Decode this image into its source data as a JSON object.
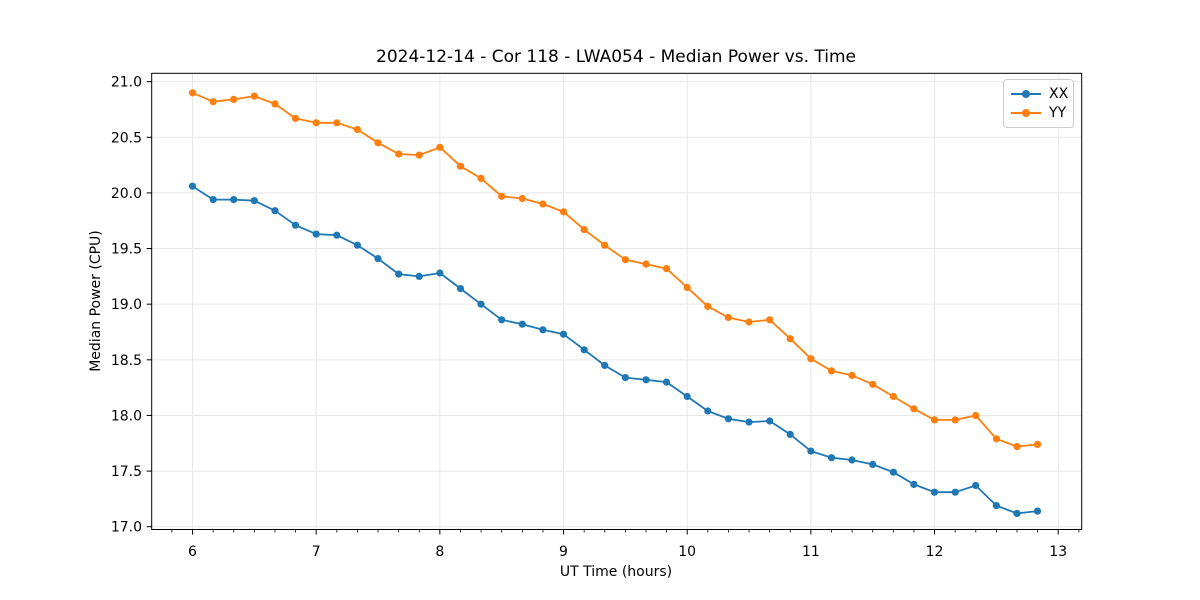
{
  "chart_data": {
    "type": "line",
    "title": "2024-12-14 - Cor 118 - LWA054 - Median Power vs. Time",
    "xlabel": "UT Time (hours)",
    "ylabel": "Median Power (CPU)",
    "grid": true,
    "legend_position": "upper right",
    "xlim": [
      5.67,
      13.19
    ],
    "ylim": [
      16.975,
      21.075
    ],
    "x_major_ticks": [
      6,
      7,
      8,
      9,
      10,
      11,
      12,
      13
    ],
    "x_minor_interval_hours": 0.16667,
    "y_major_ticks": [
      17.0,
      17.5,
      18.0,
      18.5,
      19.0,
      19.5,
      20.0,
      20.5,
      21.0
    ],
    "x": [
      6.0,
      6.167,
      6.333,
      6.5,
      6.667,
      6.833,
      7.0,
      7.167,
      7.333,
      7.5,
      7.667,
      7.833,
      8.0,
      8.167,
      8.333,
      8.5,
      8.667,
      8.833,
      9.0,
      9.167,
      9.333,
      9.5,
      9.667,
      9.833,
      10.0,
      10.167,
      10.333,
      10.5,
      10.667,
      10.833,
      11.0,
      11.167,
      11.333,
      11.5,
      11.667,
      11.833,
      12.0,
      12.167,
      12.333,
      12.5,
      12.667,
      12.833
    ],
    "series": [
      {
        "name": "XX",
        "color": "#1f77b4",
        "values": [
          20.06,
          19.94,
          19.94,
          19.93,
          19.84,
          19.71,
          19.63,
          19.62,
          19.53,
          19.41,
          19.27,
          19.25,
          19.28,
          19.14,
          19.0,
          18.86,
          18.82,
          18.77,
          18.73,
          18.59,
          18.45,
          18.34,
          18.32,
          18.3,
          18.17,
          18.04,
          17.97,
          17.94,
          17.95,
          17.83,
          17.68,
          17.62,
          17.6,
          17.56,
          17.49,
          17.38,
          17.31,
          17.31,
          17.37,
          17.19,
          17.12,
          17.14
        ]
      },
      {
        "name": "YY",
        "color": "#ff7f0e",
        "values": [
          20.9,
          20.82,
          20.84,
          20.87,
          20.8,
          20.67,
          20.63,
          20.63,
          20.57,
          20.45,
          20.35,
          20.34,
          20.41,
          20.24,
          20.13,
          19.97,
          19.95,
          19.9,
          19.83,
          19.67,
          19.53,
          19.4,
          19.36,
          19.32,
          19.15,
          18.98,
          18.88,
          18.84,
          18.86,
          18.69,
          18.51,
          18.4,
          18.36,
          18.28,
          18.17,
          18.06,
          17.96,
          17.96,
          18.0,
          17.79,
          17.72,
          17.74
        ]
      }
    ]
  },
  "figure": {
    "background_color": "#ffffff",
    "grid_color": "#e7e7e7",
    "spine_color": "#000000",
    "tick_label_color": "#000000"
  }
}
